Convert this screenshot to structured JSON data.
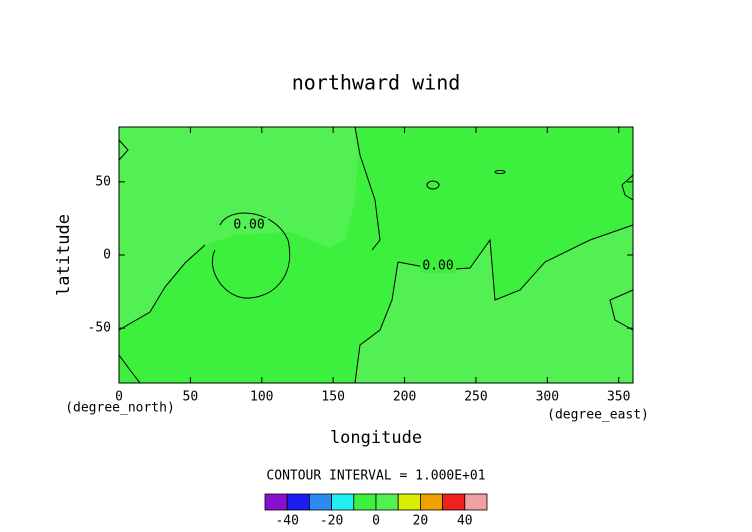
{
  "chart_data": {
    "type": "contour",
    "title": "northward wind",
    "xlabel": "longitude",
    "ylabel": "latitude",
    "xunit": "(degree_east)",
    "yunit": "(degree_north)",
    "xlim": [
      0,
      360
    ],
    "ylim": [
      -87.5,
      87.5
    ],
    "xticks": [
      0,
      50,
      100,
      150,
      200,
      250,
      300,
      350
    ],
    "yticks": [
      -50,
      0,
      50
    ],
    "contour_labels": [
      "0.00",
      "0.00"
    ],
    "contour_interval_label": "CONTOUR INTERVAL = 1.000E+01",
    "colorbar": {
      "levels": [
        -50,
        -40,
        -30,
        -20,
        -10,
        0,
        10,
        20,
        30,
        40,
        50
      ],
      "colors": [
        "#8a10d0",
        "#1c1cf0",
        "#2a8cf0",
        "#20f0f0",
        "#3ef03e",
        "#52f052",
        "#d8f000",
        "#f0a000",
        "#f02020",
        "#f0a0a0"
      ],
      "ticks": [
        -40,
        -20,
        0,
        20,
        40
      ]
    }
  }
}
